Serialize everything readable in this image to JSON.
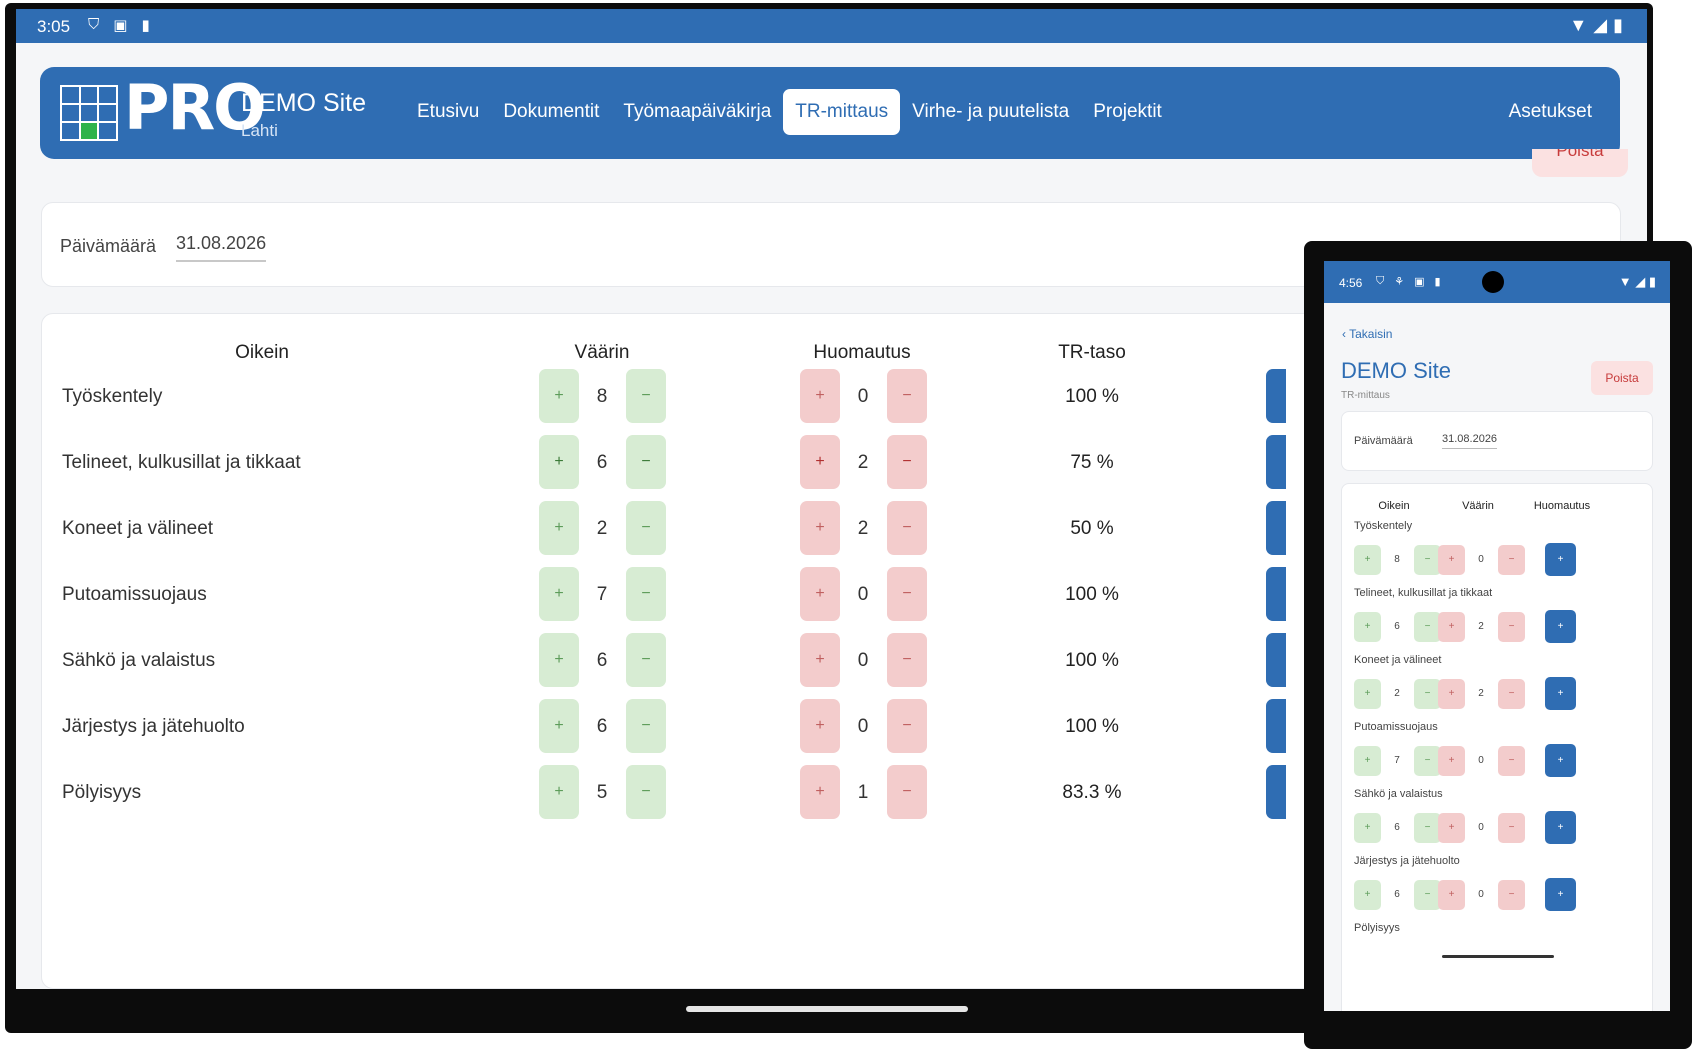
{
  "tablet": {
    "status": {
      "time": "3:05"
    },
    "brand": {
      "logo": "PRO",
      "site": "DEMO Site",
      "city": "Lahti"
    },
    "nav": {
      "items": [
        "Etusivu",
        "Dokumentit",
        "Työmaapäiväkirja",
        "TR-mittaus",
        "Virhe- ja puutelista",
        "Projektit"
      ],
      "active": "TR-mittaus",
      "settings": "Asetukset"
    },
    "delete_label": "Poista",
    "date": {
      "label": "Päivämäärä",
      "value": "31.08.2026"
    },
    "table": {
      "headers": {
        "correct": "Oikein",
        "wrong": "Väärin",
        "note": "Huomautus",
        "level": "TR-taso"
      },
      "rows": [
        {
          "label": "Työskentely",
          "correct": "8",
          "note": "0",
          "level": "100 %"
        },
        {
          "label": "Telineet, kulkusillat ja tikkaat",
          "correct": "6",
          "note": "2",
          "level": "75 %"
        },
        {
          "label": "Koneet ja välineet",
          "correct": "2",
          "note": "2",
          "level": "50 %"
        },
        {
          "label": "Putoamissuojaus",
          "correct": "7",
          "note": "0",
          "level": "100 %"
        },
        {
          "label": "Sähkö ja valaistus",
          "correct": "6",
          "note": "0",
          "level": "100 %"
        },
        {
          "label": "Järjestys ja jätehuolto",
          "correct": "6",
          "note": "0",
          "level": "100 %"
        },
        {
          "label": "Pölyisyys",
          "correct": "5",
          "note": "1",
          "level": "83.3 %"
        }
      ]
    }
  },
  "phone": {
    "status": {
      "time": "4:56"
    },
    "back": "Takaisin",
    "title": "DEMO Site",
    "subtitle": "TR-mittaus",
    "delete": "Poista",
    "date": {
      "label": "Päivämäärä",
      "value": "31.08.2026"
    },
    "headers": {
      "correct": "Oikein",
      "wrong": "Väärin",
      "note": "Huomautus"
    },
    "rows": [
      {
        "label": "Työskentely",
        "correct": "8",
        "note": "0"
      },
      {
        "label": "Telineet, kulkusillat ja tikkaat",
        "correct": "6",
        "note": "2"
      },
      {
        "label": "Koneet ja välineet",
        "correct": "2",
        "note": "2"
      },
      {
        "label": "Putoamissuojaus",
        "correct": "7",
        "note": "0"
      },
      {
        "label": "Sähkö ja valaistus",
        "correct": "6",
        "note": "0"
      },
      {
        "label": "Järjestys ja jätehuolto",
        "correct": "6",
        "note": "0"
      },
      {
        "label": "Pölyisyys"
      }
    ]
  },
  "colors": {
    "primary": "#2f6db3",
    "green_btn": "#d7ecd3",
    "red_btn": "#f3cccc",
    "delete_text": "#c73b3b"
  }
}
